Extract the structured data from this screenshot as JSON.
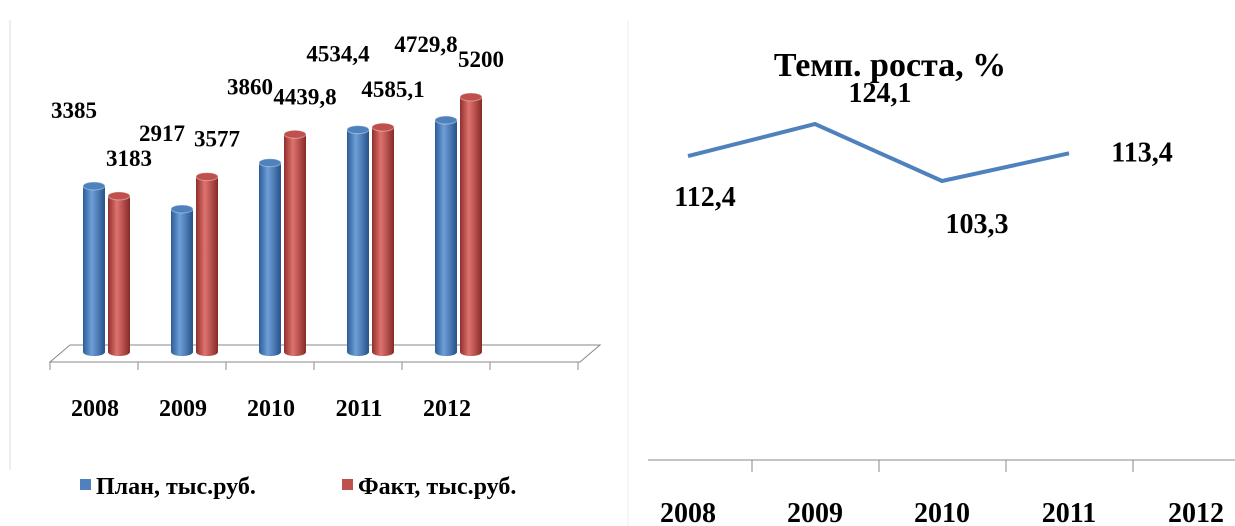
{
  "chart_data": [
    {
      "type": "bar3d",
      "categories": [
        "2008",
        "2009",
        "2010",
        "2011",
        "2012"
      ],
      "series": [
        {
          "name": "План, тыс.руб.",
          "color": "#4f81bd",
          "values": [
            3385,
            2917,
            3860,
            4534.4,
            4729.8
          ],
          "value_labels": [
            "3385",
            "2917",
            "3860",
            "4534,4",
            "4729,8"
          ]
        },
        {
          "name": "Факт, тыс.руб.",
          "color": "#c0504d",
          "values": [
            3183,
            3577,
            4439.8,
            4585.1,
            5200
          ],
          "value_labels": [
            "3183",
            "3577",
            "4439,8",
            "4585,1",
            "5200"
          ]
        }
      ]
    },
    {
      "type": "line",
      "title": "Темп. роста, %",
      "categories": [
        "2008",
        "2009",
        "2010",
        "2011",
        "2012"
      ],
      "series": [
        {
          "name": "Темп. роста, %",
          "color": "#4f81bd",
          "values": [
            112.4,
            124.1,
            103.3,
            113.4,
            null
          ],
          "value_labels": [
            "112,4",
            "124,1",
            "103,3",
            "113,4",
            null
          ]
        }
      ]
    }
  ]
}
